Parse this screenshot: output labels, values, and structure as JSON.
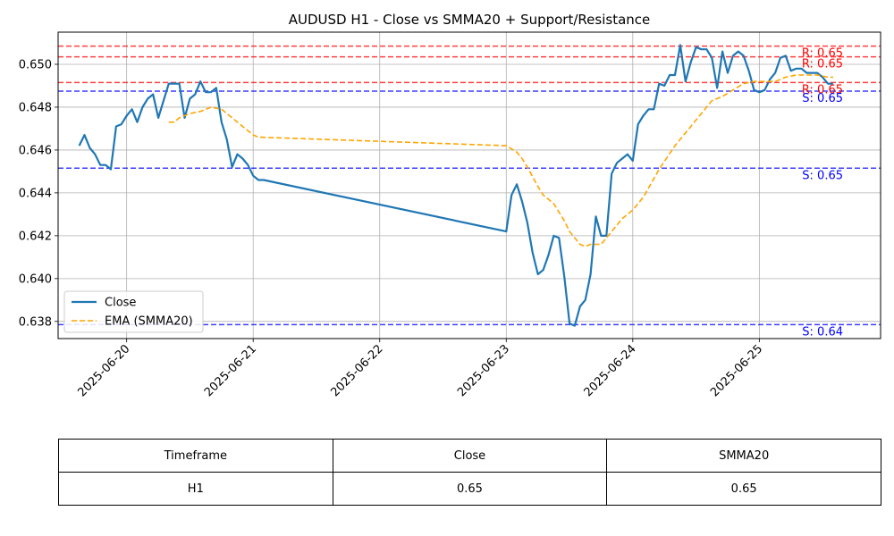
{
  "chart_data": {
    "type": "line",
    "title": "AUDUSD H1 - Close vs SMMA20 + Support/Resistance",
    "xlabel": "",
    "ylabel": "",
    "x_tick_labels": [
      "2025-06-20",
      "2025-06-21",
      "2025-06-22",
      "2025-06-23",
      "2025-06-24",
      "2025-06-25"
    ],
    "y_tick_labels": [
      "0.638",
      "0.640",
      "0.642",
      "0.644",
      "0.646",
      "0.648",
      "0.650"
    ],
    "ylim": [
      0.6372,
      0.6515
    ],
    "xlim": [
      "2025-06-19T11:00",
      "2025-06-25T23:00"
    ],
    "grid": true,
    "legend_position": "lower-left",
    "series": [
      {
        "name": "Close",
        "color": "#1f77b4",
        "style": "solid",
        "points": [
          [
            "2025-06-19T15:00",
            0.6462
          ],
          [
            "2025-06-19T16:00",
            0.6467
          ],
          [
            "2025-06-19T17:00",
            0.6461
          ],
          [
            "2025-06-19T18:00",
            0.6458
          ],
          [
            "2025-06-19T19:00",
            0.6453
          ],
          [
            "2025-06-19T20:00",
            0.6453
          ],
          [
            "2025-06-19T21:00",
            0.6451
          ],
          [
            "2025-06-19T22:00",
            0.6471
          ],
          [
            "2025-06-19T23:00",
            0.6472
          ],
          [
            "2025-06-20T00:00",
            0.6476
          ],
          [
            "2025-06-20T01:00",
            0.6479
          ],
          [
            "2025-06-20T02:00",
            0.6473
          ],
          [
            "2025-06-20T03:00",
            0.648
          ],
          [
            "2025-06-20T04:00",
            0.6484
          ],
          [
            "2025-06-20T05:00",
            0.6486
          ],
          [
            "2025-06-20T06:00",
            0.6475
          ],
          [
            "2025-06-20T07:00",
            0.6483
          ],
          [
            "2025-06-20T08:00",
            0.6491
          ],
          [
            "2025-06-20T09:00",
            0.6491
          ],
          [
            "2025-06-20T10:00",
            0.6491
          ],
          [
            "2025-06-20T11:00",
            0.6475
          ],
          [
            "2025-06-20T12:00",
            0.6484
          ],
          [
            "2025-06-20T13:00",
            0.6486
          ],
          [
            "2025-06-20T14:00",
            0.6492
          ],
          [
            "2025-06-20T15:00",
            0.6487
          ],
          [
            "2025-06-20T16:00",
            0.6487
          ],
          [
            "2025-06-20T17:00",
            0.6489
          ],
          [
            "2025-06-20T18:00",
            0.6473
          ],
          [
            "2025-06-20T19:00",
            0.6465
          ],
          [
            "2025-06-20T20:00",
            0.6452
          ],
          [
            "2025-06-20T21:00",
            0.6458
          ],
          [
            "2025-06-20T22:00",
            0.6456
          ],
          [
            "2025-06-20T23:00",
            0.6453
          ],
          [
            "2025-06-21T00:00",
            0.6448
          ],
          [
            "2025-06-21T01:00",
            0.6446
          ],
          [
            "2025-06-21T02:00",
            0.6446
          ],
          [
            "2025-06-23T00:00",
            0.6422
          ],
          [
            "2025-06-23T01:00",
            0.6439
          ],
          [
            "2025-06-23T02:00",
            0.6444
          ],
          [
            "2025-06-23T03:00",
            0.6436
          ],
          [
            "2025-06-23T04:00",
            0.6426
          ],
          [
            "2025-06-23T05:00",
            0.6412
          ],
          [
            "2025-06-23T06:00",
            0.6402
          ],
          [
            "2025-06-23T07:00",
            0.6404
          ],
          [
            "2025-06-23T08:00",
            0.6411
          ],
          [
            "2025-06-23T09:00",
            0.642
          ],
          [
            "2025-06-23T10:00",
            0.6419
          ],
          [
            "2025-06-23T11:00",
            0.6401
          ],
          [
            "2025-06-23T12:00",
            0.6379
          ],
          [
            "2025-06-23T13:00",
            0.6378
          ],
          [
            "2025-06-23T14:00",
            0.6387
          ],
          [
            "2025-06-23T15:00",
            0.639
          ],
          [
            "2025-06-23T16:00",
            0.6402
          ],
          [
            "2025-06-23T17:00",
            0.6429
          ],
          [
            "2025-06-23T18:00",
            0.642
          ],
          [
            "2025-06-23T19:00",
            0.642
          ],
          [
            "2025-06-23T20:00",
            0.6449
          ],
          [
            "2025-06-23T21:00",
            0.6454
          ],
          [
            "2025-06-23T22:00",
            0.6456
          ],
          [
            "2025-06-23T23:00",
            0.6458
          ],
          [
            "2025-06-24T00:00",
            0.6455
          ],
          [
            "2025-06-24T01:00",
            0.6472
          ],
          [
            "2025-06-24T02:00",
            0.6476
          ],
          [
            "2025-06-24T03:00",
            0.6479
          ],
          [
            "2025-06-24T04:00",
            0.6479
          ],
          [
            "2025-06-24T05:00",
            0.6491
          ],
          [
            "2025-06-24T06:00",
            0.649
          ],
          [
            "2025-06-24T07:00",
            0.6495
          ],
          [
            "2025-06-24T08:00",
            0.6495
          ],
          [
            "2025-06-24T09:00",
            0.6509
          ],
          [
            "2025-06-24T10:00",
            0.6492
          ],
          [
            "2025-06-24T11:00",
            0.6501
          ],
          [
            "2025-06-24T12:00",
            0.6508
          ],
          [
            "2025-06-24T13:00",
            0.6507
          ],
          [
            "2025-06-24T14:00",
            0.6507
          ],
          [
            "2025-06-24T15:00",
            0.6503
          ],
          [
            "2025-06-24T16:00",
            0.6489
          ],
          [
            "2025-06-24T17:00",
            0.6506
          ],
          [
            "2025-06-24T18:00",
            0.6496
          ],
          [
            "2025-06-24T19:00",
            0.6504
          ],
          [
            "2025-06-24T20:00",
            0.6506
          ],
          [
            "2025-06-24T21:00",
            0.6504
          ],
          [
            "2025-06-24T22:00",
            0.6497
          ],
          [
            "2025-06-24T23:00",
            0.6488
          ],
          [
            "2025-06-25T00:00",
            0.6487
          ],
          [
            "2025-06-25T01:00",
            0.6488
          ],
          [
            "2025-06-25T02:00",
            0.6493
          ],
          [
            "2025-06-25T03:00",
            0.6496
          ],
          [
            "2025-06-25T04:00",
            0.6503
          ],
          [
            "2025-06-25T05:00",
            0.6504
          ],
          [
            "2025-06-25T06:00",
            0.6497
          ],
          [
            "2025-06-25T07:00",
            0.6498
          ],
          [
            "2025-06-25T08:00",
            0.6498
          ],
          [
            "2025-06-25T09:00",
            0.6496
          ],
          [
            "2025-06-25T10:00",
            0.6496
          ],
          [
            "2025-06-25T11:00",
            0.6496
          ],
          [
            "2025-06-25T12:00",
            0.6494
          ],
          [
            "2025-06-25T13:00",
            0.6491
          ],
          [
            "2025-06-25T14:00",
            0.6491
          ]
        ]
      },
      {
        "name": "EMA (SMMA20)",
        "color": "#ffa500",
        "style": "dashed",
        "points": [
          [
            "2025-06-20T08:00",
            0.6473
          ],
          [
            "2025-06-20T09:00",
            0.6473
          ],
          [
            "2025-06-20T10:00",
            0.6475
          ],
          [
            "2025-06-20T12:00",
            0.6477
          ],
          [
            "2025-06-20T14:00",
            0.6478
          ],
          [
            "2025-06-20T16:00",
            0.648
          ],
          [
            "2025-06-20T18:00",
            0.6479
          ],
          [
            "2025-06-20T20:00",
            0.6475
          ],
          [
            "2025-06-20T22:00",
            0.6471
          ],
          [
            "2025-06-21T00:00",
            0.6467
          ],
          [
            "2025-06-21T01:00",
            0.6466
          ],
          [
            "2025-06-23T00:00",
            0.6462
          ],
          [
            "2025-06-23T02:00",
            0.6459
          ],
          [
            "2025-06-23T03:00",
            0.6456
          ],
          [
            "2025-06-23T04:00",
            0.6452
          ],
          [
            "2025-06-23T06:00",
            0.6443
          ],
          [
            "2025-06-23T07:00",
            0.6439
          ],
          [
            "2025-06-23T09:00",
            0.6435
          ],
          [
            "2025-06-23T10:00",
            0.6431
          ],
          [
            "2025-06-23T11:00",
            0.6427
          ],
          [
            "2025-06-23T12:00",
            0.6422
          ],
          [
            "2025-06-23T14:00",
            0.6416
          ],
          [
            "2025-06-23T15:00",
            0.6415
          ],
          [
            "2025-06-23T16:00",
            0.6416
          ],
          [
            "2025-06-23T18:00",
            0.6416
          ],
          [
            "2025-06-23T20:00",
            0.6422
          ],
          [
            "2025-06-23T22:00",
            0.6428
          ],
          [
            "2025-06-24T00:00",
            0.6432
          ],
          [
            "2025-06-24T02:00",
            0.6438
          ],
          [
            "2025-06-24T05:00",
            0.6451
          ],
          [
            "2025-06-24T08:00",
            0.6462
          ],
          [
            "2025-06-24T10:00",
            0.6468
          ],
          [
            "2025-06-24T13:00",
            0.6477
          ],
          [
            "2025-06-24T15:00",
            0.6483
          ],
          [
            "2025-06-24T17:00",
            0.6485
          ],
          [
            "2025-06-24T19:00",
            0.6488
          ],
          [
            "2025-06-24T21:00",
            0.6491
          ],
          [
            "2025-06-24T23:00",
            0.6492
          ],
          [
            "2025-06-25T01:00",
            0.6492
          ],
          [
            "2025-06-25T03:00",
            0.6492
          ],
          [
            "2025-06-25T05:00",
            0.6494
          ],
          [
            "2025-06-25T07:00",
            0.6495
          ],
          [
            "2025-06-25T09:00",
            0.6495
          ],
          [
            "2025-06-25T11:00",
            0.6495
          ],
          [
            "2025-06-25T13:00",
            0.6494
          ],
          [
            "2025-06-25T14:00",
            0.6494
          ]
        ]
      }
    ],
    "resistance_levels": [
      {
        "value": 0.65085,
        "label": "R: 0.65"
      },
      {
        "value": 0.65035,
        "label": "R: 0.65"
      },
      {
        "value": 0.64915,
        "label": "R: 0.65"
      }
    ],
    "support_levels": [
      {
        "value": 0.64875,
        "label": "S: 0.65"
      },
      {
        "value": 0.64515,
        "label": "S: 0.65"
      },
      {
        "value": 0.63785,
        "label": "S: 0.64"
      }
    ],
    "colors": {
      "close": "#1f77b4",
      "ema": "#ffa500",
      "resistance": "#ff0000",
      "support": "#0000ff",
      "grid": "#b0b0b0"
    }
  },
  "table": {
    "headers": [
      "Timeframe",
      "Close",
      "SMMA20"
    ],
    "rows": [
      [
        "H1",
        "0.65",
        "0.65"
      ]
    ]
  }
}
